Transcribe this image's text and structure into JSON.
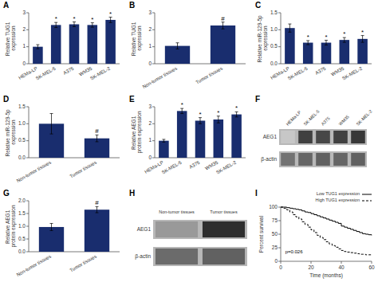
{
  "chart_data": [
    {
      "type": "bar",
      "title": "A",
      "categories": [
        "HEMa-LP",
        "SK-MEL-5",
        "A375",
        "WM35",
        "SK-MEL-2"
      ],
      "values": [
        1.0,
        2.28,
        2.32,
        2.28,
        2.58
      ],
      "errors": [
        0.12,
        0.15,
        0.14,
        0.13,
        0.16
      ],
      "annotations": [
        null,
        "*",
        "*",
        "*",
        "*"
      ],
      "y_label": "Relative TUG1 expression",
      "ylim": [
        0,
        3
      ],
      "yticks": [
        0,
        1,
        2,
        3
      ],
      "color": "#192d6e"
    },
    {
      "type": "bar",
      "title": "B",
      "categories": [
        "Non-tumor tissues",
        "Tumor tissues"
      ],
      "values": [
        1.05,
        2.25
      ],
      "errors": [
        0.18,
        0.2
      ],
      "annotations": [
        null,
        "#"
      ],
      "y_label": "Relative TUG1 expression",
      "ylim": [
        0,
        3
      ],
      "yticks": [
        0,
        1,
        2,
        3
      ],
      "color": "#192d6e"
    },
    {
      "type": "bar",
      "title": "C",
      "categories": [
        "HEMa-LP",
        "SK-MEL-5",
        "A375",
        "WM35",
        "SK-MEL-2"
      ],
      "values": [
        1.05,
        0.62,
        0.62,
        0.7,
        0.73
      ],
      "errors": [
        0.12,
        0.06,
        0.07,
        0.07,
        0.1
      ],
      "annotations": [
        null,
        "*",
        "*",
        "*",
        "*"
      ],
      "y_label": "Relative miR-129-5p expression",
      "ylim": [
        0,
        1.5
      ],
      "yticks": [
        {
          "value": 0,
          "label": "0.0"
        },
        0.5,
        {
          "value": 1,
          "label": "1.0"
        },
        1.5
      ],
      "color": "#192d6e"
    },
    {
      "type": "bar",
      "title": "D",
      "categories": [
        "Non-tumor tissues",
        "Tumor tissues"
      ],
      "values": [
        1.0,
        0.57
      ],
      "errors": [
        0.3,
        0.1
      ],
      "annotations": [
        null,
        "#"
      ],
      "y_label": "Relative miR-129-5p expression",
      "ylim": [
        0,
        1.5
      ],
      "yticks": [
        {
          "value": 0,
          "label": "0.0"
        },
        0.5,
        {
          "value": 1,
          "label": "1.0"
        },
        1.5
      ],
      "color": "#192d6e"
    },
    {
      "type": "bar",
      "title": "E",
      "categories": [
        "HEMa-LP",
        "SK-MEL-5",
        "A375",
        "WM35",
        "SK-MEL-2"
      ],
      "values": [
        1.0,
        2.75,
        2.18,
        2.25,
        2.55
      ],
      "errors": [
        0.08,
        0.15,
        0.18,
        0.2,
        0.15
      ],
      "annotations": [
        null,
        "*",
        "*",
        "*",
        "*"
      ],
      "y_label": "Relative AEG1 protein expression",
      "ylim": [
        0,
        3
      ],
      "yticks": [
        0,
        1,
        2,
        3
      ],
      "color": "#192d6e"
    },
    {
      "type": "heatmap",
      "title": "F",
      "categories": [
        "HEMa-LP",
        "SK-MEL-5",
        "A375",
        "WM35",
        "SK-MEL-2"
      ],
      "rows": [
        "AEG1",
        "β-actin"
      ],
      "values": [
        [
          0.78,
          0.25,
          0.28,
          0.25,
          0.22
        ],
        [
          0.45,
          0.4,
          0.38,
          0.4,
          0.38
        ]
      ],
      "color": "#b8b8b8"
    },
    {
      "type": "bar",
      "title": "G",
      "categories": [
        "Non-tumor tissues",
        "Tumor tissues"
      ],
      "values": [
        0.97,
        1.65
      ],
      "errors": [
        0.14,
        0.12
      ],
      "annotations": [
        null,
        "#"
      ],
      "y_label": "Relative AEG1 protein expression",
      "ylim": [
        0,
        2.0
      ],
      "yticks": [
        {
          "value": 0,
          "label": "0.0"
        },
        0.5,
        {
          "value": 1,
          "label": "1.0"
        },
        1.5,
        {
          "value": 2,
          "label": "2.0"
        }
      ],
      "color": "#192d6e"
    },
    {
      "type": "heatmap",
      "title": "H",
      "categories": [
        "Non-tumor tissues",
        "Tumor tissues"
      ],
      "rows": [
        "AEG1",
        "β-actin"
      ],
      "values": [
        [
          0.6,
          0.18
        ],
        [
          0.42,
          0.38
        ]
      ],
      "color": "#b8b8b8"
    },
    {
      "type": "step",
      "title": "I",
      "x": [
        0,
        2,
        4,
        6,
        8,
        10,
        12,
        14,
        16,
        18,
        20,
        22,
        24,
        26,
        28,
        30,
        32,
        34,
        36,
        38,
        40,
        42,
        44,
        46,
        48,
        50,
        52,
        54,
        56,
        58,
        60
      ],
      "series": [
        {
          "name": "Low TUG1 expression",
          "color": "#000000",
          "line_style": "solid",
          "values": [
            100,
            100,
            99,
            98,
            97,
            96,
            95,
            93,
            91,
            90,
            88,
            86,
            84,
            82,
            80,
            78,
            76,
            74,
            72,
            70,
            65,
            63,
            61,
            59,
            57,
            55,
            53,
            51,
            50,
            49,
            48
          ]
        },
        {
          "name": "High TUG1 expression",
          "color": "#000000",
          "line_style": "dashed",
          "values": [
            100,
            98,
            95,
            91,
            86,
            82,
            78,
            73,
            68,
            63,
            58,
            53,
            48,
            44,
            40,
            36,
            32,
            29,
            26,
            23,
            20,
            18,
            17,
            16,
            15,
            14,
            13,
            13,
            12,
            12,
            12
          ]
        }
      ],
      "x_label": "Time (months)",
      "y_label": "Percent survival",
      "annotations": [
        "p=0.026"
      ],
      "legend": "upper right",
      "xlim": [
        0,
        60
      ],
      "ylim": [
        0,
        100
      ],
      "xticks": [
        0,
        20,
        40,
        60
      ],
      "yticks": [
        0,
        25,
        50,
        75,
        100
      ]
    }
  ]
}
